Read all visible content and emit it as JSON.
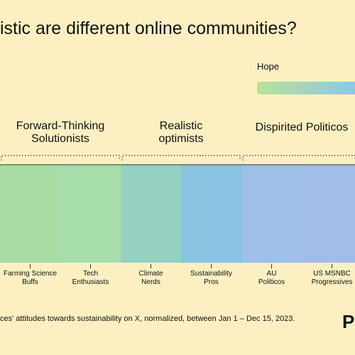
{
  "chart_data": {
    "type": "columns",
    "title": "istic are different online communities?",
    "legend_label": "Hope",
    "legend_gradient": [
      "#b5e39a",
      "#8fc3ea"
    ],
    "groups": [
      {
        "lines": [
          "Forward-Thinking",
          "Solutionists"
        ],
        "span": [
          0,
          1
        ]
      },
      {
        "lines": [
          "Realistic",
          "optimists"
        ],
        "span": [
          2,
          3
        ]
      },
      {
        "lines": [
          "Dispirited Politicos"
        ],
        "span": [
          4,
          5
        ]
      }
    ],
    "categories": [
      [
        "Farming Science",
        "Buffs"
      ],
      [
        "Tech",
        "Enthusiasts"
      ],
      [
        "Climate",
        "Nerds"
      ],
      [
        "Sustainability",
        "Pros"
      ],
      [
        "AU",
        "Politicos"
      ],
      [
        "US MSNBC",
        "Progressives"
      ]
    ],
    "colors": [
      "#a9dca2",
      "#a7dcab",
      "#95d0c2",
      "#8ac2e2",
      "#9ebfe6",
      "#a2bee6"
    ],
    "footnote": "ces' attitudes towards sustainability on X, normalized, between Jan 1 – Dec 15, 2023.",
    "brand": "P"
  }
}
